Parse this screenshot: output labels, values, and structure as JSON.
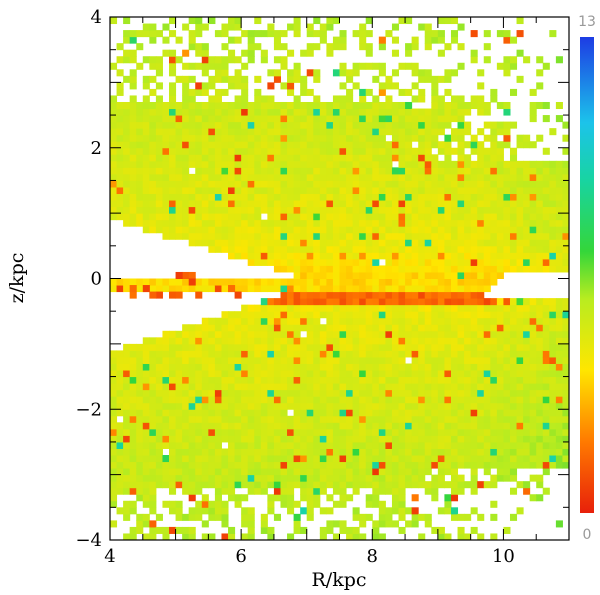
{
  "chart_data": {
    "type": "heatmap",
    "xlabel": "R/kpc",
    "ylabel": "z/kpc",
    "xlim": [
      4,
      11
    ],
    "ylim": [
      -4,
      4
    ],
    "x_ticks": [
      4,
      6,
      8,
      10
    ],
    "y_ticks": [
      -4,
      -2,
      0,
      2,
      4
    ],
    "x_tick_labels": [
      "4",
      "6",
      "8",
      "10"
    ],
    "y_tick_labels": [
      "−4",
      "−2",
      "0",
      "2",
      "4"
    ],
    "bin_size_kpc": [
      0.1,
      0.1
    ],
    "colorbar": {
      "min": 0,
      "max": 13,
      "min_label": "0",
      "max_label": "13",
      "colormap": "red-orange-yellow-green-cyan-blue"
    },
    "structure": {
      "typical_value_range": [
        3,
        5
      ],
      "midplane_low_band": {
        "z_range": [
          -0.35,
          -0.15
        ],
        "R_range": [
          5.5,
          9.9
        ],
        "value_range": [
          0.8,
          2
        ]
      },
      "empty_wedge_upper": {
        "z_at_R4": [
          0.05,
          0.9
        ],
        "closes_at_R": 6.9
      },
      "empty_wedge_lower": {
        "z_at_R4": [
          -1.1,
          -0.35
        ],
        "closes_at_R": 6.9
      },
      "empty_outer_notch": {
        "z_range": [
          -0.3,
          0.05
        ],
        "R_start": 9.6
      },
      "sparse_upper_right": {
        "z_above": 1.8,
        "R_above": 8.2
      },
      "sparse_lower_right": {
        "z_below": -2.9,
        "R_above": 8.5
      },
      "sparse_top": {
        "z_above": 2.7
      },
      "sparse_bottom": {
        "z_below": -3.2
      }
    }
  }
}
